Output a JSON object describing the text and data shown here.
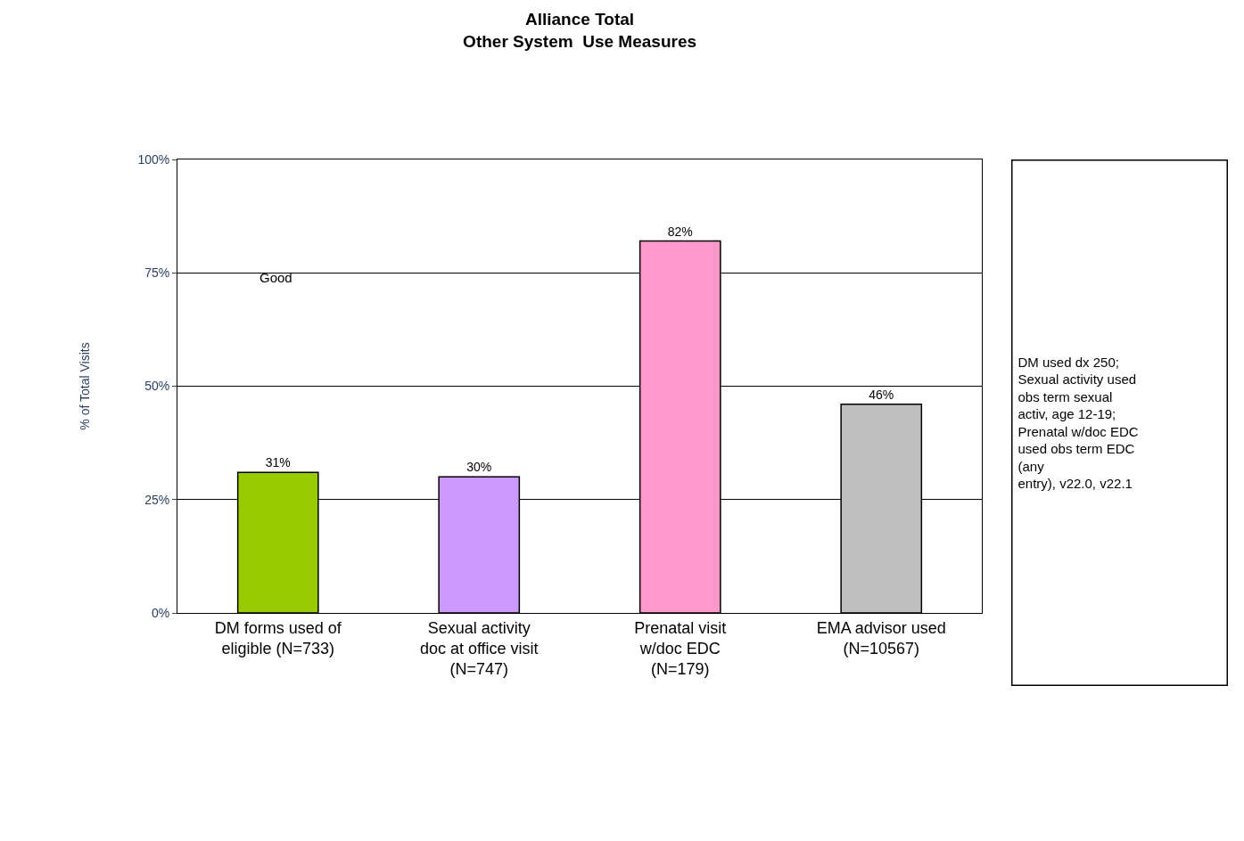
{
  "chart_data": {
    "type": "bar",
    "title": "Alliance Total\nOther System  Use Measures",
    "ylabel": "% of Total Visits",
    "categories": [
      "DM forms used of\neligible (N=733)",
      "Sexual activity\ndoc at office visit\n(N=747)",
      "Prenatal visit\nw/doc EDC\n(N=179)",
      "EMA advisor used\n(N=10567)"
    ],
    "values": [
      31,
      30,
      82,
      46
    ],
    "colors": [
      "#99cc00",
      "#cc99ff",
      "#ff99cc",
      "#c0c0c0"
    ],
    "value_labels": [
      "31%",
      "30%",
      "82%",
      "46%"
    ],
    "ylim": [
      0,
      100
    ],
    "yticks": [
      {
        "value": 0,
        "label": "0%"
      },
      {
        "value": 25,
        "label": "25%"
      },
      {
        "value": 50,
        "label": "50%"
      },
      {
        "value": 75,
        "label": "75%"
      },
      {
        "value": 100,
        "label": "100%"
      }
    ],
    "grid": "y",
    "legend": false,
    "annotations": [
      "Good",
      "DM used dx 250;\nSexual activity used\nobs term sexual\nactiv, age 12-19;\nPrenatal w/doc EDC\nused obs term EDC\n(any\nentry), v22.0, v22.1"
    ]
  }
}
